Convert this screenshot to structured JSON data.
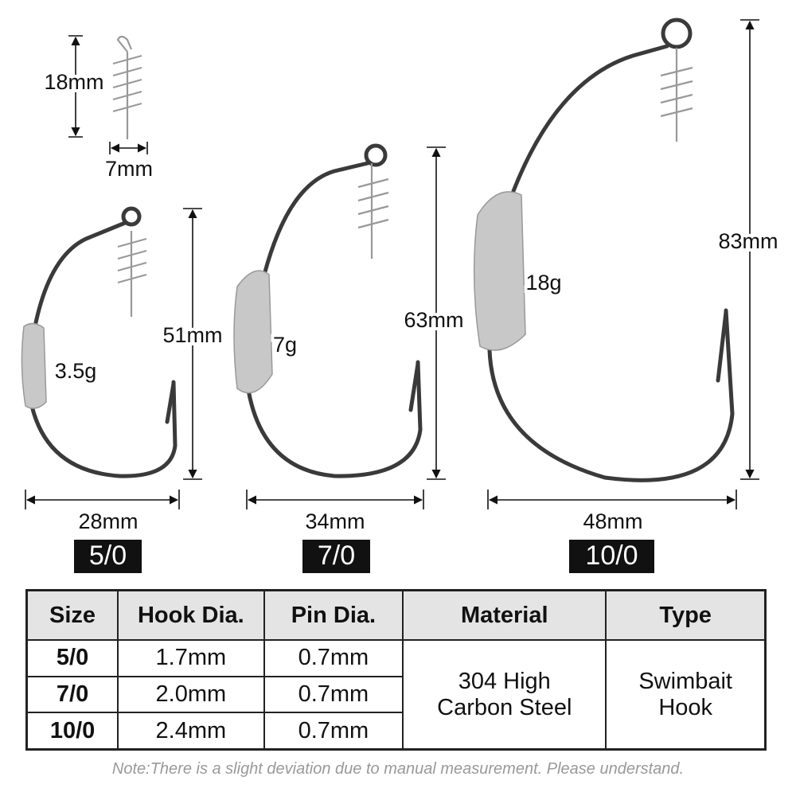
{
  "spring": {
    "height": "18mm",
    "width": "7mm"
  },
  "hooks": [
    {
      "size": "5/0",
      "height": "51mm",
      "width": "28mm",
      "weight": "3.5g"
    },
    {
      "size": "7/0",
      "height": "63mm",
      "width": "34mm",
      "weight": "7g"
    },
    {
      "size": "10/0",
      "height": "83mm",
      "width": "48mm",
      "weight": "18g"
    }
  ],
  "table": {
    "headers": [
      "Size",
      "Hook Dia.",
      "Pin Dia.",
      "Material",
      "Type"
    ],
    "rows": [
      [
        "5/0",
        "1.7mm",
        "0.7mm"
      ],
      [
        "7/0",
        "2.0mm",
        "0.7mm"
      ],
      [
        "10/0",
        "2.4mm",
        "0.7mm"
      ]
    ],
    "material": "304 High Carbon Steel",
    "type": "Swimbait Hook"
  },
  "note": "Note:There is a slight deviation due to manual measurement. Please understand."
}
